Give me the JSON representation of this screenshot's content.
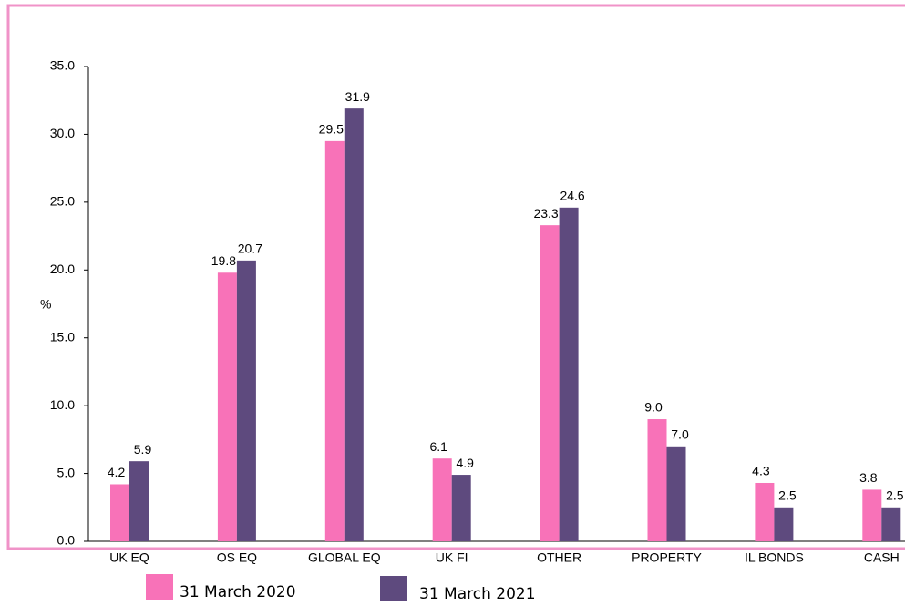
{
  "chart_data": {
    "type": "bar",
    "ylabel": "%",
    "categories": [
      "UK EQ",
      "OS EQ",
      "GLOBAL EQ",
      "UK FI",
      "OTHER",
      "PROPERTY",
      "IL BONDS",
      "CASH"
    ],
    "series": [
      {
        "name": "31 March 2020",
        "color": "#f872b8",
        "values": [
          4.2,
          19.8,
          29.5,
          6.1,
          23.3,
          9,
          4.3,
          3.8
        ],
        "value_labels": [
          "4.2",
          "19.8",
          "29.5",
          "6.1",
          "23.3",
          "9.0",
          "4.3",
          "3.8"
        ]
      },
      {
        "name": "31 March 2021",
        "color": "#5e4a7e",
        "values": [
          5.9,
          20.7,
          31.9,
          4.9,
          24.6,
          7,
          2.5,
          2.5
        ],
        "value_labels": [
          "5.9",
          "20.7",
          "31.9",
          "4.9",
          "24.6",
          "7.0",
          "2.5",
          "2.5"
        ]
      }
    ],
    "ylim": [
      0,
      35
    ],
    "yticks": [
      {
        "value": 0,
        "label": "0.0"
      },
      {
        "value": 5,
        "label": "5.0"
      },
      {
        "value": 10,
        "label": "10.0"
      },
      {
        "value": 15,
        "label": "15.0"
      },
      {
        "value": 20,
        "label": "20.0"
      },
      {
        "value": 25,
        "label": "25.0"
      },
      {
        "value": 30,
        "label": "30.0"
      },
      {
        "value": 35,
        "label": "35.0"
      }
    ],
    "grid": false,
    "legend": "bottom"
  }
}
